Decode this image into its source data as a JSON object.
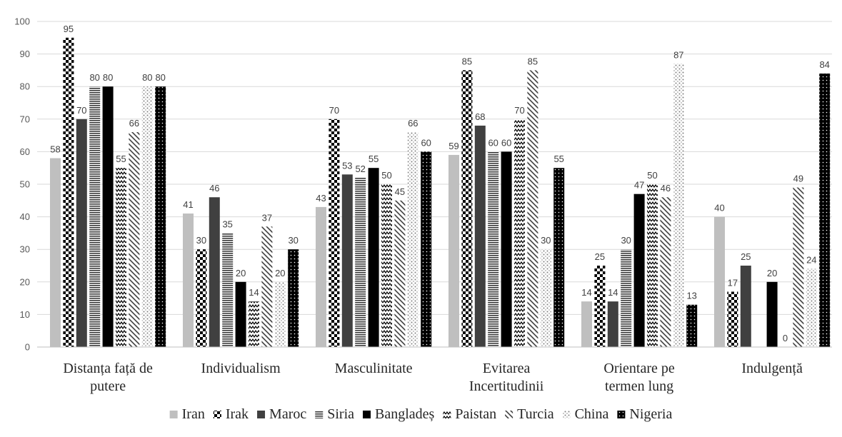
{
  "chart_data": {
    "type": "bar",
    "categories": [
      [
        "Distanța față de",
        "putere"
      ],
      [
        "Individualism"
      ],
      [
        "Masculinitate"
      ],
      [
        "Evitarea",
        "Incertitudinii"
      ],
      [
        "Orientare pe",
        "termen lung"
      ],
      [
        "Indulgență"
      ]
    ],
    "series": [
      {
        "name": "Iran",
        "values": [
          58,
          41,
          43,
          59,
          14,
          40
        ],
        "pattern": "solid-light"
      },
      {
        "name": "Irak",
        "values": [
          95,
          30,
          70,
          85,
          25,
          17
        ],
        "pattern": "checker"
      },
      {
        "name": "Maroc",
        "values": [
          70,
          46,
          53,
          68,
          14,
          25
        ],
        "pattern": "solid-dark"
      },
      {
        "name": "Siria",
        "values": [
          80,
          35,
          52,
          60,
          30,
          null
        ],
        "pattern": "hstripes"
      },
      {
        "name": "Bangladeș",
        "values": [
          80,
          20,
          55,
          60,
          47,
          20
        ],
        "pattern": "solid-black"
      },
      {
        "name": "Paistan",
        "values": [
          55,
          14,
          50,
          70,
          50,
          0
        ],
        "pattern": "zigzag"
      },
      {
        "name": "Turcia",
        "values": [
          66,
          37,
          45,
          85,
          46,
          49
        ],
        "pattern": "diagonal"
      },
      {
        "name": "China",
        "values": [
          80,
          20,
          66,
          30,
          87,
          24
        ],
        "pattern": "dots-light"
      },
      {
        "name": "Nigeria",
        "values": [
          80,
          30,
          60,
          55,
          13,
          84
        ],
        "pattern": "dots-dark"
      }
    ],
    "ylim": [
      0,
      100
    ],
    "yticks": [
      "0",
      "10",
      "20",
      "30",
      "40",
      "50",
      "60",
      "70",
      "80",
      "90",
      "100"
    ],
    "grid": true,
    "legend": "bottom",
    "colors": {
      "light": "#bfbfbf",
      "dark": "#404040",
      "black": "#000000",
      "grid": "#d9d9d9"
    }
  }
}
